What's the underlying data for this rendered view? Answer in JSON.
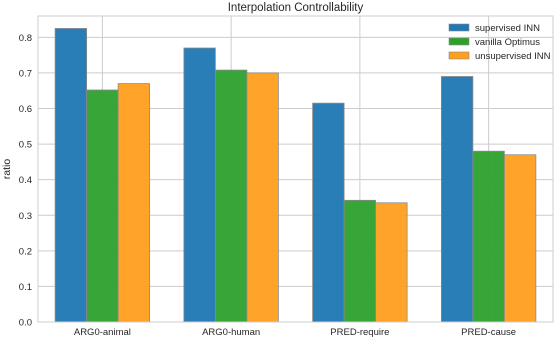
{
  "chart_data": {
    "type": "bar",
    "title": "Interpolation Controllability",
    "xlabel": "",
    "ylabel": "ratio",
    "ylim": [
      0,
      0.86
    ],
    "yticks": [
      0.0,
      0.1,
      0.2,
      0.3,
      0.4,
      0.5,
      0.6,
      0.7,
      0.8
    ],
    "categories": [
      "ARG0-animal",
      "ARG0-human",
      "PRED-require",
      "PRED-cause"
    ],
    "series": [
      {
        "name": "supervised INN",
        "color": "#1f77b4",
        "values": [
          0.825,
          0.77,
          0.615,
          0.69
        ]
      },
      {
        "name": "vanilla Optimus",
        "color": "#2ca02c",
        "values": [
          0.652,
          0.708,
          0.342,
          0.48
        ]
      },
      {
        "name": "unsupervised INN",
        "color": "#ff9f1c",
        "values": [
          0.67,
          0.7,
          0.335,
          0.47
        ]
      }
    ],
    "grid": true,
    "legend_position": "top-right"
  }
}
